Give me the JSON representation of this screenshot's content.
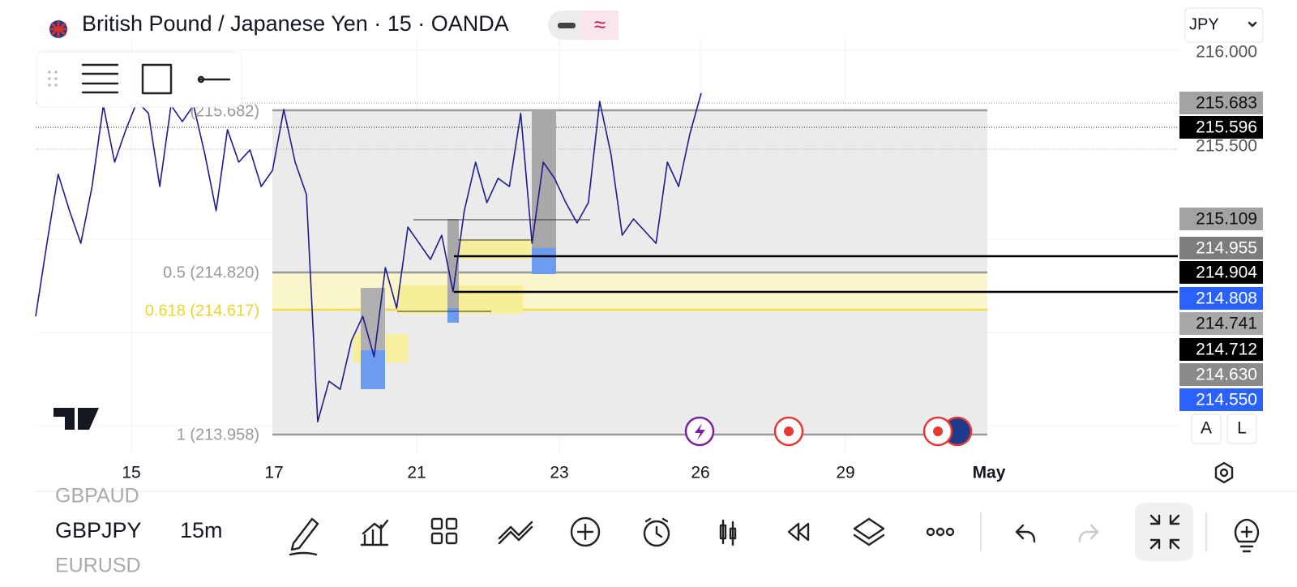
{
  "header": {
    "title": "British Pound / Japanese Yen · 15 · OANDA",
    "currency": "JPY"
  },
  "chart": {
    "type": "line",
    "color": "#1c1c8f",
    "ylim": [
      213.855,
      216.074
    ],
    "values": [
      214.587,
      214.975,
      215.342,
      215.148,
      214.975,
      215.277,
      215.708,
      215.406,
      215.579,
      215.729,
      215.665,
      215.277,
      215.708,
      215.622,
      215.708,
      215.449,
      215.148,
      215.579,
      215.406,
      215.471,
      215.277,
      215.363,
      215.686,
      215.406,
      215.234,
      214.027,
      214.242,
      214.199,
      214.458,
      214.587,
      214.372,
      214.846,
      214.63,
      215.061,
      214.975,
      214.889,
      215.018,
      214.717,
      215.148,
      215.406,
      215.191,
      215.32,
      215.277,
      215.665,
      214.975,
      215.406,
      215.32,
      215.191,
      215.083,
      215.191,
      215.729,
      215.449,
      215.018,
      215.104,
      215.04,
      214.975,
      215.406,
      215.277,
      215.557,
      215.773
    ]
  },
  "price_axis": {
    "labels": [
      {
        "text": "216.000",
        "bg": "none",
        "fg": "#555"
      },
      {
        "text": "215.683",
        "bg": "#a3a3a3",
        "fg": "#111"
      },
      {
        "text": "215.596",
        "bg": "#000000",
        "fg": "#fff"
      },
      {
        "text": "215.500",
        "bg": "none",
        "fg": "#555"
      },
      {
        "text": "215.109",
        "bg": "#a3a3a3",
        "fg": "#111"
      },
      {
        "text": "214.955",
        "bg": "#7d7d7d",
        "fg": "#fff"
      },
      {
        "text": "214.904",
        "bg": "#000000",
        "fg": "#fff"
      },
      {
        "text": "214.808",
        "bg": "#2962ff",
        "fg": "#fff"
      },
      {
        "text": "214.741",
        "bg": "#a8a8a8",
        "fg": "#111"
      },
      {
        "text": "214.712",
        "bg": "#000000",
        "fg": "#fff"
      },
      {
        "text": "214.630",
        "bg": "#8a8a8a",
        "fg": "#fff"
      },
      {
        "text": "214.550",
        "bg": "#2962ff",
        "fg": "#fff"
      }
    ]
  },
  "fib_levels": [
    "(215.682)",
    "0.5 (214.820)",
    "0.618 (214.617)",
    "1 (213.958)"
  ],
  "time_axis": {
    "labels": [
      "15",
      "17",
      "21",
      "23",
      "26",
      "29",
      "May"
    ]
  },
  "scale_buttons": [
    "A",
    "L"
  ],
  "watchlist": [
    "GBPAUD",
    "GBPJPY",
    "EURUSD"
  ],
  "interval": "15m"
}
